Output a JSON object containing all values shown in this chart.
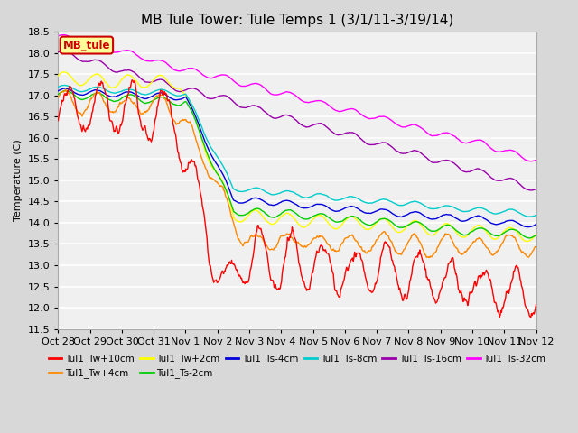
{
  "title": "MB Tule Tower: Tule Temps 1 (3/1/11-3/19/14)",
  "ylabel": "Temperature (C)",
  "ylim": [
    11.5,
    18.5
  ],
  "yticks": [
    11.5,
    12.0,
    12.5,
    13.0,
    13.5,
    14.0,
    14.5,
    15.0,
    15.5,
    16.0,
    16.5,
    17.0,
    17.5,
    18.0,
    18.5
  ],
  "xtick_labels": [
    "Oct 28",
    "Oct 29",
    "Oct 30",
    "Oct 31",
    "Nov 1",
    "Nov 2",
    "Nov 3",
    "Nov 4",
    "Nov 5",
    "Nov 6",
    "Nov 7",
    "Nov 8",
    "Nov 9",
    "Nov 10",
    "Nov 11",
    "Nov 12"
  ],
  "legend_label": "MB_tule",
  "legend_box_facecolor": "#ffff99",
  "legend_box_edgecolor": "#cc0000",
  "series": [
    {
      "label": "Tul1_Tw+10cm",
      "color": "#ff0000"
    },
    {
      "label": "Tul1_Tw+4cm",
      "color": "#ff8800"
    },
    {
      "label": "Tul1_Tw+2cm",
      "color": "#ffff00"
    },
    {
      "label": "Tul1_Ts-2cm",
      "color": "#00cc00"
    },
    {
      "label": "Tul1_Ts-4cm",
      "color": "#0000dd"
    },
    {
      "label": "Tul1_Ts-8cm",
      "color": "#00cccc"
    },
    {
      "label": "Tul1_Ts-16cm",
      "color": "#9900aa"
    },
    {
      "label": "Tul1_Ts-32cm",
      "color": "#ff00ff"
    }
  ],
  "fig_bg": "#d8d8d8",
  "plot_bg": "#f0f0f0",
  "grid_color": "#ffffff",
  "title_fontsize": 11,
  "axis_fontsize": 8,
  "tick_fontsize": 8
}
